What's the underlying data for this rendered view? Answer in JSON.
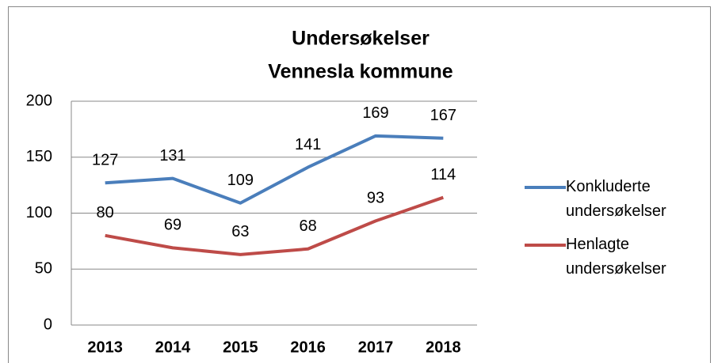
{
  "chart_data": {
    "type": "line",
    "title": [
      "Undersøkelser",
      "Vennesla kommune"
    ],
    "categories": [
      "2013",
      "2014",
      "2015",
      "2016",
      "2017",
      "2018"
    ],
    "series": [
      {
        "name": "Konkluderte undersøkelser",
        "color": "#4a7ebb",
        "values": [
          127,
          131,
          109,
          141,
          169,
          167
        ]
      },
      {
        "name": "Henlagte undersøkelser",
        "color": "#be4b48",
        "values": [
          80,
          69,
          63,
          68,
          93,
          114
        ]
      }
    ],
    "ylim": [
      0,
      200
    ],
    "yticks": [
      0,
      50,
      100,
      150,
      200
    ],
    "grid": true,
    "legend": "right"
  }
}
